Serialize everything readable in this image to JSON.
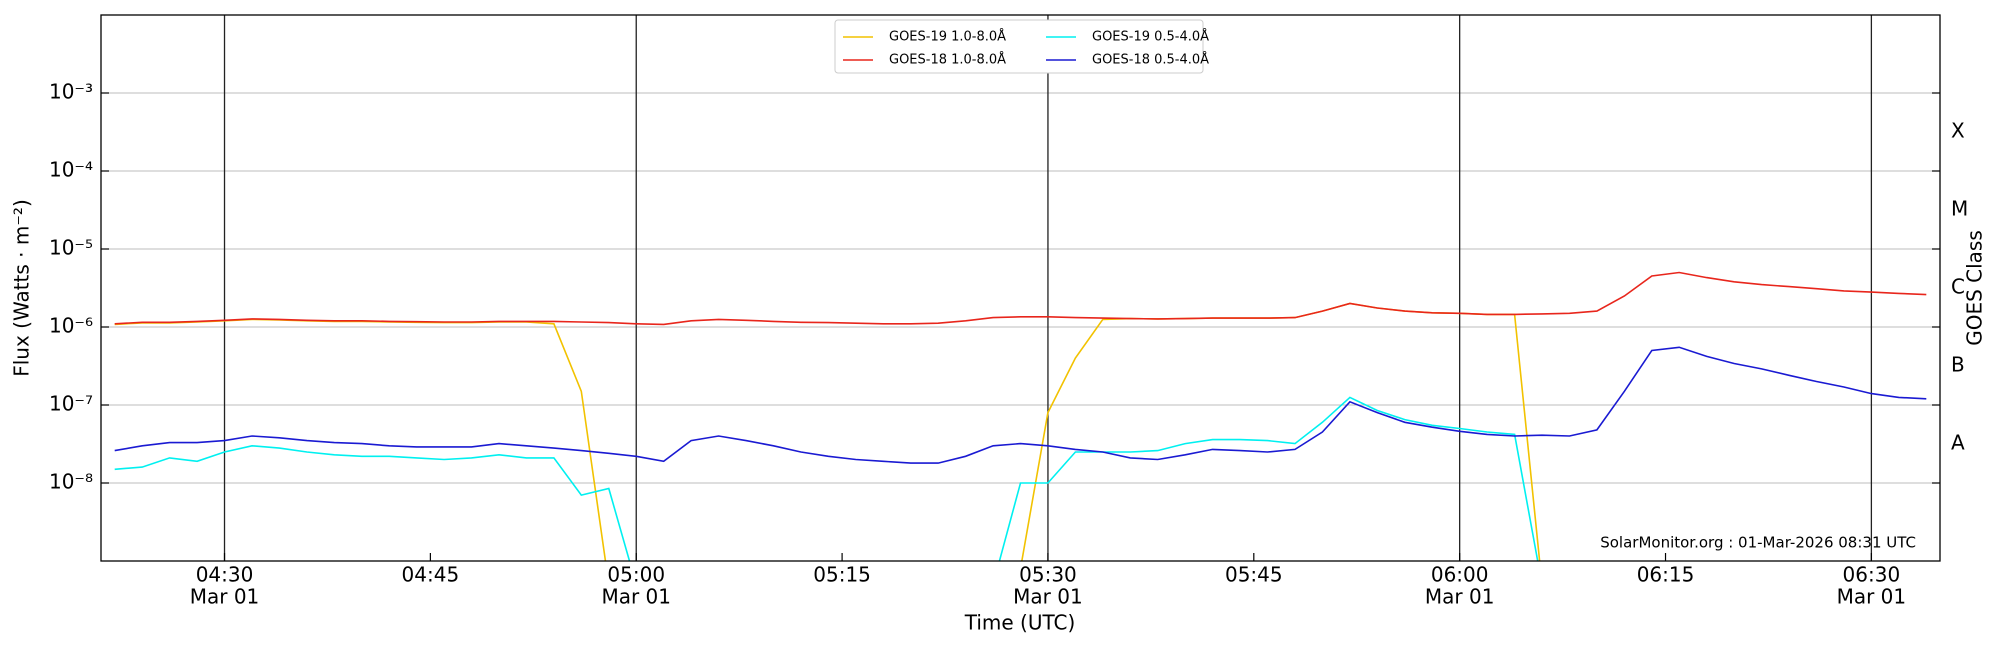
{
  "chart_data": {
    "type": "line",
    "ylabel": "Flux (Watts · m⁻²)",
    "xlabel": "Time (UTC)",
    "y2label": "GOES Class",
    "annotation": "SolarMonitor.org : 01-Mar-2026 08:31 UTC",
    "log_y": true,
    "grid": true,
    "legend": "upper center",
    "xlim": [
      "04:21",
      "06:35"
    ],
    "xticks": [
      "04:30",
      "04:45",
      "05:00",
      "05:15",
      "05:30",
      "05:45",
      "06:00",
      "06:15",
      "06:30"
    ],
    "xtick_sublabels": [
      "Mar 01",
      null,
      "Mar 01",
      null,
      "Mar 01",
      null,
      "Mar 01",
      null,
      "Mar 01"
    ],
    "ylim": [
      1e-09,
      0.01
    ],
    "yticks": [
      {
        "value": 1e-08,
        "label": "10⁻⁸"
      },
      {
        "value": 1e-07,
        "label": "10⁻⁷"
      },
      {
        "value": 1e-06,
        "label": "10⁻⁶"
      },
      {
        "value": 1e-05,
        "label": "10⁻⁵"
      },
      {
        "value": 0.0001,
        "label": "10⁻⁴"
      },
      {
        "value": 0.001,
        "label": "10⁻³"
      }
    ],
    "y2lim": [
      1e-09,
      0.01
    ],
    "y2ticks": [
      {
        "value": 3.162e-08,
        "label": "A"
      },
      {
        "value": 3.162e-07,
        "label": "B"
      },
      {
        "value": 3.162e-06,
        "label": "C"
      },
      {
        "value": 3.162e-05,
        "label": "M"
      },
      {
        "value": 0.0003162,
        "label": "X"
      }
    ],
    "x": [
      "04:22",
      "04:24",
      "04:26",
      "04:28",
      "04:30",
      "04:32",
      "04:34",
      "04:36",
      "04:38",
      "04:40",
      "04:42",
      "04:44",
      "04:46",
      "04:48",
      "04:50",
      "04:52",
      "04:54",
      "04:56",
      "04:58",
      "05:00",
      "05:02",
      "05:04",
      "05:06",
      "05:08",
      "05:10",
      "05:12",
      "05:14",
      "05:16",
      "05:18",
      "05:20",
      "05:22",
      "05:24",
      "05:26",
      "05:28",
      "05:30",
      "05:32",
      "05:34",
      "05:36",
      "05:38",
      "05:40",
      "05:42",
      "05:44",
      "05:46",
      "05:48",
      "05:50",
      "05:52",
      "05:54",
      "05:56",
      "05:58",
      "06:00",
      "06:02",
      "06:04",
      "06:06",
      "06:08",
      "06:10",
      "06:12",
      "06:14",
      "06:16",
      "06:18",
      "06:20",
      "06:22",
      "06:24",
      "06:26",
      "06:28",
      "06:30",
      "06:32",
      "06:34"
    ],
    "series": [
      {
        "name": "GOES-19 1.0-8.0Å",
        "color": "#f2c200",
        "values": [
          1.08e-06,
          1.13e-06,
          1.13e-06,
          1.16e-06,
          1.2e-06,
          1.25e-06,
          1.23e-06,
          1.2e-06,
          1.18e-06,
          1.18e-06,
          1.16e-06,
          1.15e-06,
          1.14e-06,
          1.14e-06,
          1.16e-06,
          1.16e-06,
          1.1e-06,
          1.5e-07,
          5e-10,
          null,
          null,
          null,
          null,
          null,
          null,
          null,
          null,
          null,
          null,
          null,
          null,
          null,
          null,
          8e-10,
          8e-08,
          4e-07,
          1.25e-06,
          1.28e-06,
          1.27e-06,
          1.28e-06,
          1.3e-06,
          1.3e-06,
          1.3e-06,
          1.32e-06,
          1.6e-06,
          2e-06,
          1.75e-06,
          1.6e-06,
          1.52e-06,
          1.5e-06,
          1.45e-06,
          1.45e-06,
          5e-10,
          null,
          null,
          null,
          null,
          null,
          null,
          null,
          null,
          null,
          null,
          null,
          null,
          null,
          null
        ]
      },
      {
        "name": "GOES-18 1.0-8.0Å",
        "color": "#e8261c",
        "values": [
          1.1e-06,
          1.15e-06,
          1.15e-06,
          1.18e-06,
          1.22e-06,
          1.27e-06,
          1.25e-06,
          1.22e-06,
          1.2e-06,
          1.2e-06,
          1.18e-06,
          1.17e-06,
          1.16e-06,
          1.16e-06,
          1.18e-06,
          1.18e-06,
          1.18e-06,
          1.16e-06,
          1.14e-06,
          1.1e-06,
          1.08e-06,
          1.2e-06,
          1.25e-06,
          1.22e-06,
          1.18e-06,
          1.15e-06,
          1.14e-06,
          1.12e-06,
          1.1e-06,
          1.1e-06,
          1.12e-06,
          1.2e-06,
          1.32e-06,
          1.35e-06,
          1.35e-06,
          1.32e-06,
          1.3e-06,
          1.28e-06,
          1.27e-06,
          1.28e-06,
          1.3e-06,
          1.3e-06,
          1.3e-06,
          1.32e-06,
          1.6e-06,
          2e-06,
          1.75e-06,
          1.6e-06,
          1.52e-06,
          1.5e-06,
          1.45e-06,
          1.45e-06,
          1.47e-06,
          1.5e-06,
          1.6e-06,
          2.5e-06,
          4.5e-06,
          5e-06,
          4.3e-06,
          3.8e-06,
          3.5e-06,
          3.3e-06,
          3.1e-06,
          2.9e-06,
          2.8e-06,
          2.7e-06,
          2.6e-06
        ]
      },
      {
        "name": "GOES-19 0.5-4.0Å",
        "color": "#00f0f0",
        "values": [
          1.5e-08,
          1.6e-08,
          2.1e-08,
          1.9e-08,
          2.5e-08,
          3e-08,
          2.8e-08,
          2.5e-08,
          2.3e-08,
          2.2e-08,
          2.2e-08,
          2.1e-08,
          2e-08,
          2.1e-08,
          2.3e-08,
          2.1e-08,
          2.1e-08,
          7e-09,
          8.5e-09,
          5e-10,
          null,
          null,
          null,
          null,
          null,
          null,
          null,
          null,
          null,
          null,
          null,
          null,
          5e-10,
          1e-08,
          1e-08,
          2.5e-08,
          2.5e-08,
          2.5e-08,
          2.6e-08,
          3.2e-08,
          3.6e-08,
          3.6e-08,
          3.5e-08,
          3.2e-08,
          6e-08,
          1.25e-07,
          8.5e-08,
          6.5e-08,
          5.5e-08,
          5e-08,
          4.5e-08,
          4.2e-08,
          5e-10,
          null,
          null,
          null,
          null,
          null,
          null,
          null,
          null,
          null,
          null,
          null,
          null,
          null,
          null
        ]
      },
      {
        "name": "GOES-18 0.5-4.0Å",
        "color": "#1a1ad2",
        "values": [
          2.6e-08,
          3e-08,
          3.3e-08,
          3.3e-08,
          3.5e-08,
          4e-08,
          3.8e-08,
          3.5e-08,
          3.3e-08,
          3.2e-08,
          3e-08,
          2.9e-08,
          2.9e-08,
          2.9e-08,
          3.2e-08,
          3e-08,
          2.8e-08,
          2.6e-08,
          2.4e-08,
          2.2e-08,
          1.9e-08,
          3.5e-08,
          4e-08,
          3.5e-08,
          3e-08,
          2.5e-08,
          2.2e-08,
          2e-08,
          1.9e-08,
          1.8e-08,
          1.8e-08,
          2.2e-08,
          3e-08,
          3.2e-08,
          3e-08,
          2.7e-08,
          2.5e-08,
          2.1e-08,
          2e-08,
          2.3e-08,
          2.7e-08,
          2.6e-08,
          2.5e-08,
          2.7e-08,
          4.5e-08,
          1.1e-07,
          8e-08,
          6e-08,
          5.2e-08,
          4.6e-08,
          4.2e-08,
          4e-08,
          4.1e-08,
          4e-08,
          4.8e-08,
          1.5e-07,
          5e-07,
          5.5e-07,
          4.2e-07,
          3.4e-07,
          2.9e-07,
          2.4e-07,
          2e-07,
          1.7e-07,
          1.4e-07,
          1.25e-07,
          1.2e-07
        ]
      }
    ]
  }
}
